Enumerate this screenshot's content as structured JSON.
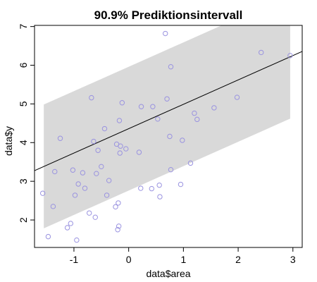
{
  "chart_data": {
    "type": "scatter",
    "title": "90.9% Prediktionsintervall",
    "xlabel": "data$area",
    "ylabel": "data$y",
    "xlim": [
      -1.72,
      3.17
    ],
    "ylim": [
      1.29,
      7.03
    ],
    "x_ticks": [
      -1,
      0,
      1,
      2,
      3
    ],
    "y_ticks": [
      2,
      3,
      4,
      5,
      6,
      7
    ],
    "colors": {
      "points": "#9a93e0",
      "band": "#d9d9d9",
      "line": "#000000"
    },
    "regression_line": {
      "intercept": 4.36,
      "slope": 0.63
    },
    "prediction_band": {
      "x_range": [
        -1.55,
        2.95
      ],
      "half_width": 1.6
    },
    "points": [
      {
        "x": -1.57,
        "y": 2.69
      },
      {
        "x": -1.47,
        "y": 1.57
      },
      {
        "x": -1.38,
        "y": 2.35
      },
      {
        "x": -1.35,
        "y": 3.25
      },
      {
        "x": -1.25,
        "y": 4.11
      },
      {
        "x": -1.12,
        "y": 1.8
      },
      {
        "x": -1.06,
        "y": 1.91
      },
      {
        "x": -1.02,
        "y": 3.29
      },
      {
        "x": -0.98,
        "y": 2.64
      },
      {
        "x": -0.95,
        "y": 1.48
      },
      {
        "x": -0.92,
        "y": 2.93
      },
      {
        "x": -0.84,
        "y": 3.22
      },
      {
        "x": -0.8,
        "y": 2.82
      },
      {
        "x": -0.72,
        "y": 2.18
      },
      {
        "x": -0.68,
        "y": 5.16
      },
      {
        "x": -0.64,
        "y": 4.03
      },
      {
        "x": -0.61,
        "y": 2.07
      },
      {
        "x": -0.59,
        "y": 3.2
      },
      {
        "x": -0.56,
        "y": 3.8
      },
      {
        "x": -0.5,
        "y": 3.38
      },
      {
        "x": -0.44,
        "y": 4.36
      },
      {
        "x": -0.4,
        "y": 2.64
      },
      {
        "x": -0.36,
        "y": 3.02
      },
      {
        "x": -0.24,
        "y": 2.34
      },
      {
        "x": -0.22,
        "y": 3.96
      },
      {
        "x": -0.2,
        "y": 1.75
      },
      {
        "x": -0.19,
        "y": 2.44
      },
      {
        "x": -0.18,
        "y": 1.84
      },
      {
        "x": -0.17,
        "y": 4.57
      },
      {
        "x": -0.16,
        "y": 3.73
      },
      {
        "x": -0.15,
        "y": 3.91
      },
      {
        "x": -0.12,
        "y": 5.03
      },
      {
        "x": -0.05,
        "y": 3.84
      },
      {
        "x": 0.19,
        "y": 3.75
      },
      {
        "x": 0.22,
        "y": 2.82
      },
      {
        "x": 0.23,
        "y": 4.93
      },
      {
        "x": 0.42,
        "y": 2.81
      },
      {
        "x": 0.44,
        "y": 4.93
      },
      {
        "x": 0.53,
        "y": 4.61
      },
      {
        "x": 0.56,
        "y": 2.9
      },
      {
        "x": 0.57,
        "y": 2.6
      },
      {
        "x": 0.67,
        "y": 6.82
      },
      {
        "x": 0.7,
        "y": 5.13
      },
      {
        "x": 0.75,
        "y": 4.16
      },
      {
        "x": 0.77,
        "y": 5.96
      },
      {
        "x": 0.77,
        "y": 3.3
      },
      {
        "x": 0.95,
        "y": 2.92
      },
      {
        "x": 0.98,
        "y": 4.06
      },
      {
        "x": 1.13,
        "y": 3.47
      },
      {
        "x": 1.2,
        "y": 4.76
      },
      {
        "x": 1.25,
        "y": 4.6
      },
      {
        "x": 1.56,
        "y": 4.9
      },
      {
        "x": 1.98,
        "y": 5.17
      },
      {
        "x": 2.42,
        "y": 6.33
      },
      {
        "x": 2.95,
        "y": 6.25
      }
    ]
  }
}
